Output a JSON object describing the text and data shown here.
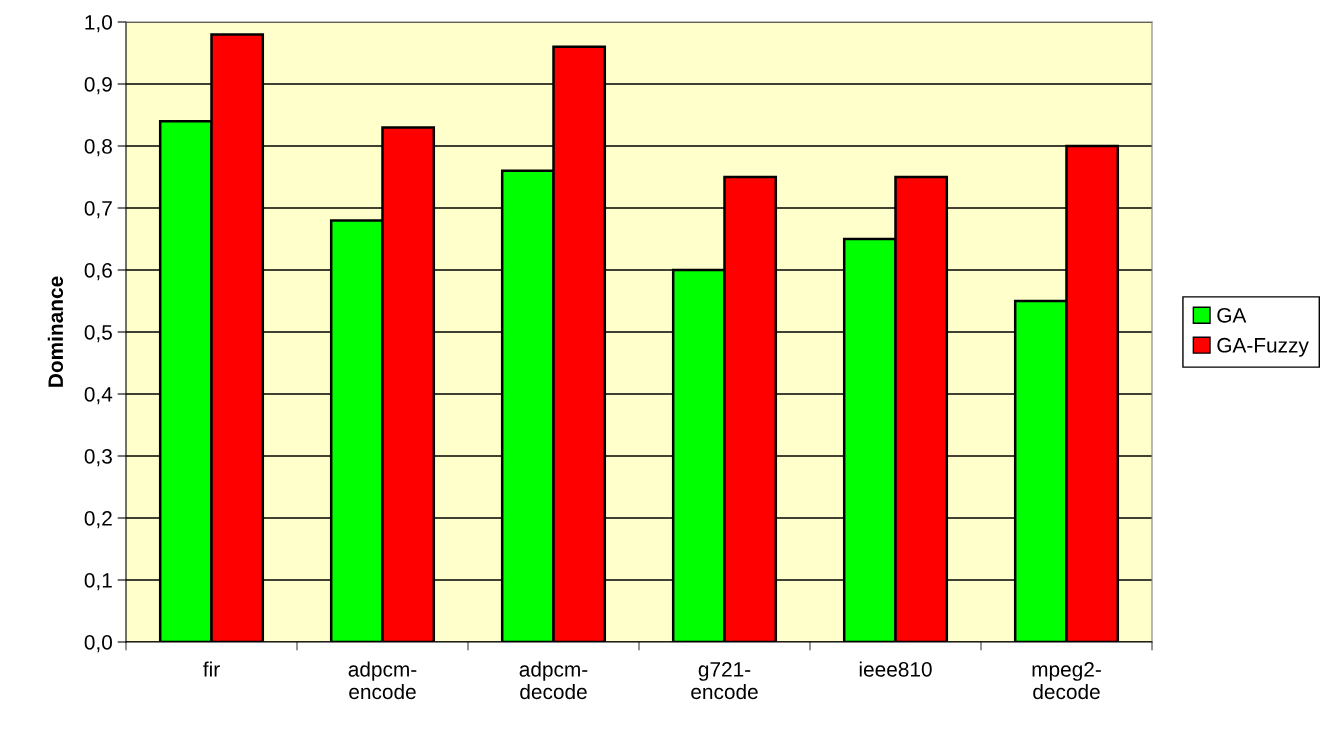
{
  "chart_data": {
    "type": "bar",
    "ylabel": "Dominance",
    "categories": [
      "fir",
      "adpcm-\nencode",
      "adpcm-\ndecode",
      "g721-\nencode",
      "ieee810",
      "mpeg2-\ndecode"
    ],
    "series": [
      {
        "name": "GA",
        "color": "#00ff00",
        "values": [
          0.84,
          0.68,
          0.76,
          0.6,
          0.65,
          0.55
        ]
      },
      {
        "name": "GA-Fuzzy",
        "color": "#ff0000",
        "values": [
          0.98,
          0.83,
          0.96,
          0.75,
          0.75,
          0.8
        ]
      }
    ],
    "ylim": [
      0,
      1
    ],
    "yticks": [
      {
        "value": 0,
        "label": "0,0"
      },
      {
        "value": 0.1,
        "label": "0,1"
      },
      {
        "value": 0.2,
        "label": "0,2"
      },
      {
        "value": 0.3,
        "label": "0,3"
      },
      {
        "value": 0.4,
        "label": "0,4"
      },
      {
        "value": 0.5,
        "label": "0,5"
      },
      {
        "value": 0.6,
        "label": "0,6"
      },
      {
        "value": 0.7,
        "label": "0,7"
      },
      {
        "value": 0.8,
        "label": "0,8"
      },
      {
        "value": 0.9,
        "label": "0,9"
      },
      {
        "value": 1,
        "label": "1,0"
      }
    ],
    "grid": "y",
    "legend": "right"
  }
}
